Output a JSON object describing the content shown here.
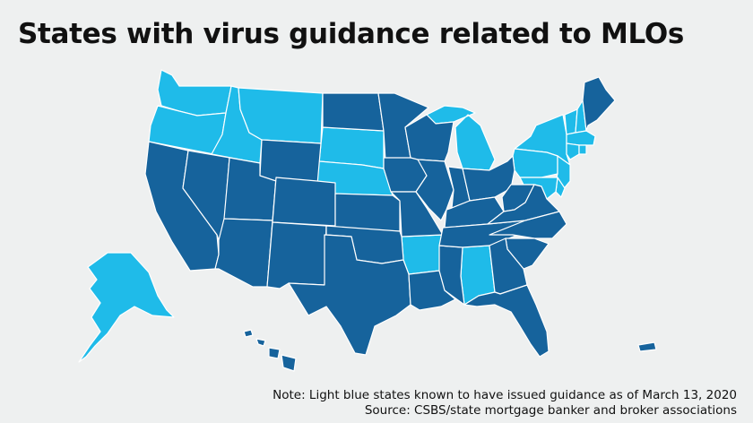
{
  "title": "States with virus guidance related to MLOs",
  "colors": {
    "background": "#eef0f0",
    "guidance_issued": "#1fbbe9",
    "no_guidance": "#16639c",
    "border": "#ffffff"
  },
  "legend_note": "Note: Light blue states known to have issued guidance as of March 13, 2020",
  "source": "Source: CSBS/state mortgage banker and broker associations",
  "states_with_guidance": [
    "WA",
    "OR",
    "ID",
    "MT",
    "SD",
    "NE",
    "AR",
    "AL",
    "MI",
    "NY",
    "PA",
    "NJ",
    "VT",
    "NH",
    "MA",
    "CT",
    "RI",
    "DE",
    "MD",
    "AK"
  ]
}
